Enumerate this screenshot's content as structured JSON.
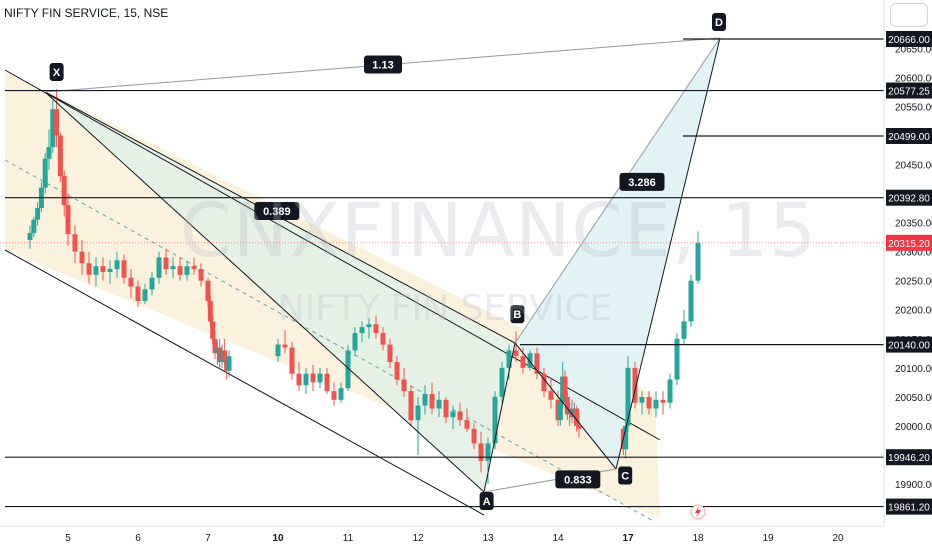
{
  "header": {
    "symbol_title": "NIFTY FIN SERVICE, 15, NSE"
  },
  "watermark": {
    "main": "CNXFINANCE, 15",
    "sub": "NIFTY FIN SERVICE"
  },
  "chart_data": {
    "type": "candlestick",
    "instrument": "NIFTY FIN SERVICE",
    "interval": "15",
    "exchange": "NSE",
    "ylim": [
      19845,
      20678
    ],
    "x_ticks": [
      {
        "label": "5",
        "day": 5,
        "bold": false
      },
      {
        "label": "6",
        "day": 6,
        "bold": false
      },
      {
        "label": "7",
        "day": 7,
        "bold": false
      },
      {
        "label": "10",
        "day": 10,
        "bold": true
      },
      {
        "label": "11",
        "day": 11,
        "bold": false
      },
      {
        "label": "12",
        "day": 12,
        "bold": false
      },
      {
        "label": "13",
        "day": 13,
        "bold": false
      },
      {
        "label": "14",
        "day": 14,
        "bold": false
      },
      {
        "label": "17",
        "day": 17,
        "bold": true
      },
      {
        "label": "18",
        "day": 18,
        "bold": false
      },
      {
        "label": "19",
        "day": 19,
        "bold": false
      },
      {
        "label": "20",
        "day": 20,
        "bold": false
      }
    ],
    "y_ticks": [
      "20650.00",
      "20600.00",
      "20550.00",
      "20450.00",
      "20400.00",
      "20350.00",
      "20300.00",
      "20250.00",
      "20200.00",
      "20150.00",
      "20100.00",
      "20050.00",
      "20000.00",
      "19950.00",
      "19900.00"
    ],
    "price_levels": [
      {
        "label": "20666.00",
        "value": 20666.0
      },
      {
        "label": "20577.25",
        "value": 20577.25
      },
      {
        "label": "20499.00",
        "value": 20499.0
      },
      {
        "label": "20392.80",
        "value": 20392.8
      },
      {
        "label": "20140.00",
        "value": 20140.0
      },
      {
        "label": "19946.20",
        "value": 19946.2
      },
      {
        "label": "19861.20",
        "value": 19861.2
      }
    ],
    "last_price": {
      "label": "20315.20",
      "value": 20315.2
    },
    "pattern_points": [
      {
        "label": "X",
        "day": 4.7,
        "price": 20580
      },
      {
        "label": "A",
        "day": 12.98,
        "price": 19900
      },
      {
        "label": "B",
        "day": 13.42,
        "price": 20163
      },
      {
        "label": "C",
        "day": 16.88,
        "price": 19944
      },
      {
        "label": "D",
        "day": 18.3,
        "price": 20666
      }
    ],
    "ratios": [
      {
        "label": "1.13",
        "day": 11.5,
        "price": 20622
      },
      {
        "label": "0.389",
        "day": 9.95,
        "price": 20370
      },
      {
        "label": "0.833",
        "day": 14.85,
        "price": 19908
      },
      {
        "label": "3.286",
        "day": 17.2,
        "price": 20420
      }
    ],
    "candles": [
      [
        4.0,
        20320,
        20345,
        20305,
        20332
      ],
      [
        4.1,
        20332,
        20360,
        20325,
        20355
      ],
      [
        4.2,
        20355,
        20385,
        20345,
        20375
      ],
      [
        4.3,
        20375,
        20420,
        20368,
        20410
      ],
      [
        4.4,
        20410,
        20470,
        20400,
        20460
      ],
      [
        4.5,
        20460,
        20510,
        20440,
        20480
      ],
      [
        4.6,
        20480,
        20560,
        20470,
        20545
      ],
      [
        4.7,
        20545,
        20580,
        20480,
        20500
      ],
      [
        4.8,
        20500,
        20505,
        20420,
        20430
      ],
      [
        4.9,
        20430,
        20440,
        20360,
        20380
      ],
      [
        5.0,
        20380,
        20400,
        20310,
        20330
      ],
      [
        5.1,
        20330,
        20345,
        20280,
        20300
      ],
      [
        5.2,
        20300,
        20320,
        20260,
        20280
      ],
      [
        5.3,
        20280,
        20300,
        20245,
        20260
      ],
      [
        5.4,
        20260,
        20290,
        20240,
        20275
      ],
      [
        5.5,
        20275,
        20290,
        20250,
        20265
      ],
      [
        5.6,
        20265,
        20285,
        20245,
        20270
      ],
      [
        5.7,
        20270,
        20300,
        20255,
        20285
      ],
      [
        5.8,
        20285,
        20295,
        20245,
        20255
      ],
      [
        5.9,
        20255,
        20270,
        20220,
        20240
      ],
      [
        6.0,
        20240,
        20250,
        20205,
        20215
      ],
      [
        6.1,
        20215,
        20245,
        20210,
        20235
      ],
      [
        6.2,
        20235,
        20265,
        20225,
        20255
      ],
      [
        6.3,
        20255,
        20300,
        20245,
        20290
      ],
      [
        6.4,
        20290,
        20305,
        20260,
        20270
      ],
      [
        6.5,
        20270,
        20290,
        20255,
        20275
      ],
      [
        6.6,
        20275,
        20290,
        20250,
        20260
      ],
      [
        6.7,
        20260,
        20285,
        20250,
        20275
      ],
      [
        6.8,
        20275,
        20290,
        20260,
        20270
      ],
      [
        6.9,
        20270,
        20280,
        20240,
        20250
      ],
      [
        7.0,
        20250,
        20255,
        20205,
        20215
      ],
      [
        7.1,
        20215,
        20225,
        20170,
        20180
      ],
      [
        7.2,
        20180,
        20190,
        20140,
        20150
      ],
      [
        7.3,
        20150,
        20165,
        20115,
        20125
      ],
      [
        7.4,
        20125,
        20145,
        20105,
        20135
      ],
      [
        7.5,
        20135,
        20150,
        20100,
        20110
      ],
      [
        7.6,
        20110,
        20140,
        20100,
        20130
      ],
      [
        7.7,
        20130,
        20150,
        20105,
        20115
      ],
      [
        7.8,
        20115,
        20130,
        20080,
        20095
      ],
      [
        7.9,
        20095,
        20130,
        20085,
        20120
      ],
      [
        10.0,
        20120,
        20150,
        20110,
        20140
      ],
      [
        10.1,
        20140,
        20165,
        20125,
        20135
      ],
      [
        10.2,
        20135,
        20145,
        20080,
        20090
      ],
      [
        10.3,
        20090,
        20110,
        20060,
        20070
      ],
      [
        10.4,
        20070,
        20100,
        20055,
        20090
      ],
      [
        10.5,
        20090,
        20105,
        20060,
        20075
      ],
      [
        10.6,
        20075,
        20100,
        20065,
        20090
      ],
      [
        10.7,
        20090,
        20100,
        20055,
        20060
      ],
      [
        10.8,
        20060,
        20075,
        20035,
        20045
      ],
      [
        10.9,
        20045,
        20075,
        20040,
        20065
      ],
      [
        11.0,
        20065,
        20140,
        20060,
        20130
      ],
      [
        11.1,
        20130,
        20170,
        20120,
        20160
      ],
      [
        11.2,
        20160,
        20180,
        20145,
        20170
      ],
      [
        11.3,
        20170,
        20185,
        20150,
        20175
      ],
      [
        11.4,
        20175,
        20190,
        20150,
        20160
      ],
      [
        11.5,
        20160,
        20170,
        20130,
        20140
      ],
      [
        11.6,
        20140,
        20150,
        20100,
        20110
      ],
      [
        11.7,
        20110,
        20120,
        20070,
        20080
      ],
      [
        11.8,
        20080,
        20100,
        20050,
        20060
      ],
      [
        11.9,
        20060,
        20070,
        20000,
        20010
      ],
      [
        12.0,
        20010,
        20050,
        19950,
        20035
      ],
      [
        12.1,
        20035,
        20070,
        20020,
        20055
      ],
      [
        12.2,
        20055,
        20075,
        20020,
        20030
      ],
      [
        12.3,
        20030,
        20060,
        20015,
        20045
      ],
      [
        12.4,
        20045,
        20050,
        20005,
        20015
      ],
      [
        12.5,
        20015,
        20035,
        19995,
        20025
      ],
      [
        12.6,
        20025,
        20040,
        20000,
        20010
      ],
      [
        12.7,
        20010,
        20030,
        19990,
        19995
      ],
      [
        12.8,
        19995,
        20005,
        19960,
        19970
      ],
      [
        12.9,
        19970,
        19990,
        19920,
        19940
      ],
      [
        13.0,
        19940,
        19980,
        19900,
        19970
      ],
      [
        13.1,
        19970,
        20060,
        19960,
        20050
      ],
      [
        13.2,
        20050,
        20110,
        20040,
        20100
      ],
      [
        13.3,
        20100,
        20140,
        20080,
        20130
      ],
      [
        13.4,
        20130,
        20163,
        20110,
        20120
      ],
      [
        13.5,
        20120,
        20135,
        20090,
        20100
      ],
      [
        13.6,
        20100,
        20130,
        20095,
        20125
      ],
      [
        13.7,
        20125,
        20135,
        20080,
        20090
      ],
      [
        13.8,
        20090,
        20100,
        20050,
        20060
      ],
      [
        13.9,
        20060,
        20080,
        20030,
        20045
      ],
      [
        14.0,
        20045,
        20060,
        20000,
        20010
      ],
      [
        14.1,
        20010,
        20050,
        20000,
        20040
      ],
      [
        14.2,
        20040,
        20110,
        20030,
        20085
      ],
      [
        14.3,
        20085,
        20095,
        20040,
        20050
      ],
      [
        14.4,
        20050,
        20060,
        20010,
        20020
      ],
      [
        14.5,
        20020,
        20040,
        20000,
        20030
      ],
      [
        14.6,
        20030,
        20045,
        20005,
        20015
      ],
      [
        14.7,
        20015,
        20040,
        20005,
        20030
      ],
      [
        14.8,
        20030,
        20035,
        19990,
        20000
      ],
      [
        14.9,
        20000,
        20020,
        19980,
        19995
      ],
      [
        16.8,
        19995,
        20000,
        19950,
        19960
      ],
      [
        16.9,
        19960,
        20010,
        19944,
        20000
      ],
      [
        17.0,
        20000,
        20120,
        19990,
        20100
      ],
      [
        17.1,
        20100,
        20110,
        20030,
        20040
      ],
      [
        17.2,
        20040,
        20060,
        20020,
        20050
      ],
      [
        17.3,
        20050,
        20060,
        20020,
        20030
      ],
      [
        17.4,
        20030,
        20060,
        20015,
        20045
      ],
      [
        17.5,
        20045,
        20060,
        20020,
        20040
      ],
      [
        17.6,
        20040,
        20090,
        20030,
        20080
      ],
      [
        17.7,
        20080,
        20160,
        20070,
        20150
      ],
      [
        17.8,
        20150,
        20200,
        20140,
        20180
      ],
      [
        17.9,
        20180,
        20260,
        20170,
        20250
      ],
      [
        18.0,
        20250,
        20335,
        20245,
        20315
      ]
    ]
  },
  "colors": {
    "up": "#26a69a",
    "down": "#ef5350",
    "last_price": "#f23645",
    "pattern_fill_blue": "#dff2f5",
    "pattern_fill_green": "#e3f1e6",
    "channel_fill": "#fbf1dc",
    "guide_line": "#5fa7a0"
  },
  "icons": {
    "tick_marker": "lightning-icon"
  }
}
